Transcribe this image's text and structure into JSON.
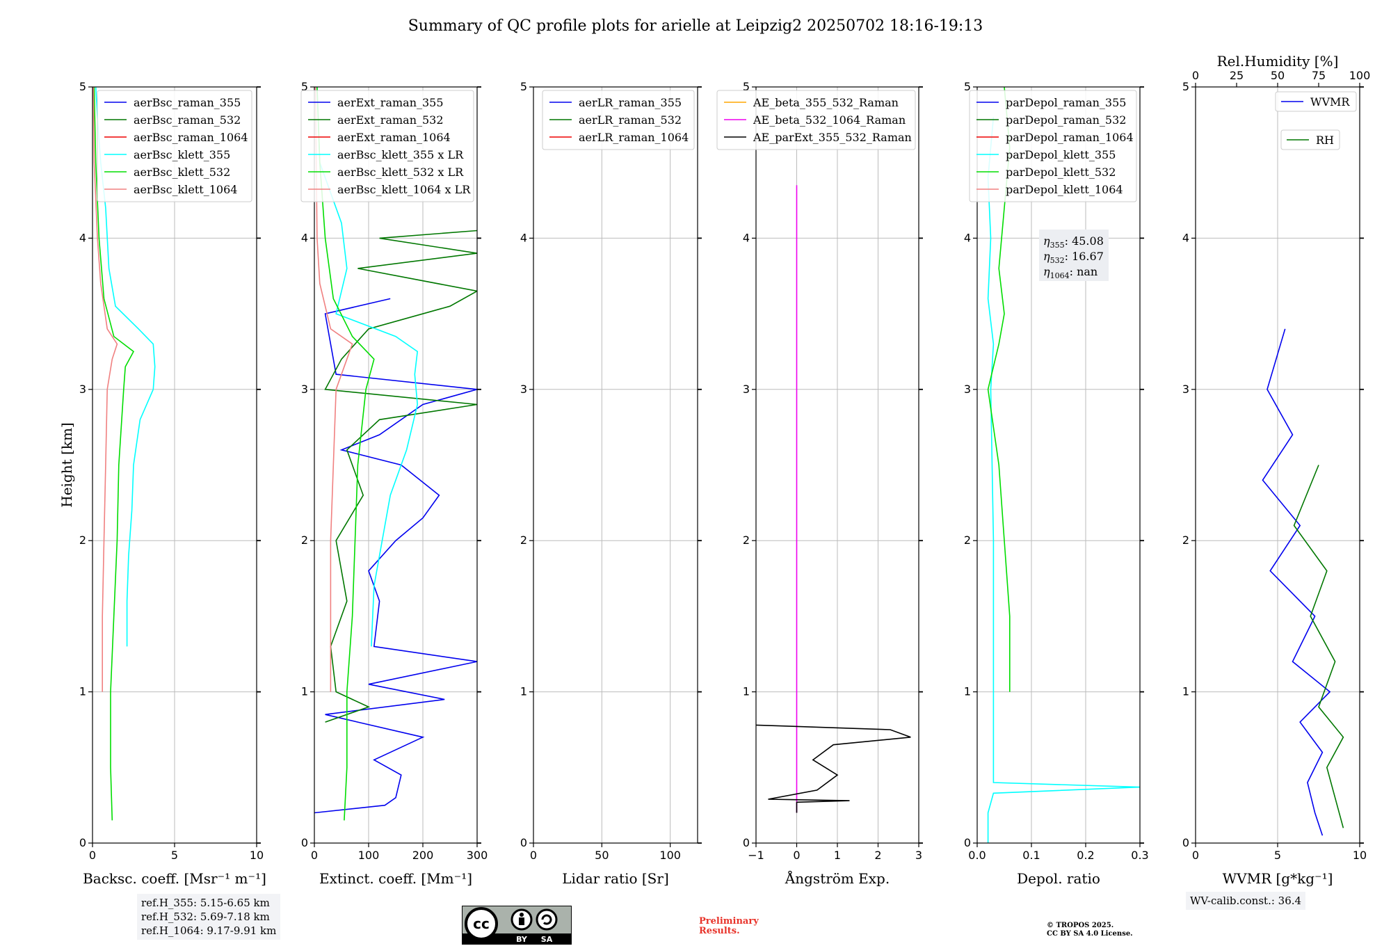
{
  "figure": {
    "title": "Summary of QC profile plots for arielle at Leipzig2 20250702 18:16-19:13"
  },
  "chart_data": [
    {
      "type": "line",
      "panel": "backscatter",
      "xlabel": "Backsc. coeff. [Msr⁻¹ m⁻¹]",
      "ylabel": "Height [km]",
      "xlim": [
        0,
        10
      ],
      "ylim": [
        0,
        5
      ],
      "xticks": [
        "0",
        "5",
        "10"
      ],
      "yticks": [
        "0",
        "1",
        "2",
        "3",
        "4",
        "5"
      ],
      "grid": true,
      "legend": "top-right",
      "series": [
        {
          "name": "aerBsc_raman_355",
          "color": "#0000ee",
          "points": []
        },
        {
          "name": "aerBsc_raman_532",
          "color": "#007700",
          "points": []
        },
        {
          "name": "aerBsc_raman_1064",
          "color": "#ee0000",
          "points": []
        },
        {
          "name": "aerBsc_klett_355",
          "color": "#00ffff",
          "points": [
            [
              2.1,
              1.3
            ],
            [
              2.1,
              1.6
            ],
            [
              2.2,
              1.9
            ],
            [
              2.4,
              2.2
            ],
            [
              2.5,
              2.5
            ],
            [
              2.9,
              2.8
            ],
            [
              3.7,
              3.0
            ],
            [
              3.8,
              3.15
            ],
            [
              3.7,
              3.3
            ],
            [
              2.8,
              3.4
            ],
            [
              1.4,
              3.55
            ],
            [
              1.0,
              3.8
            ],
            [
              0.8,
              4.2
            ],
            [
              0.5,
              4.5
            ],
            [
              0.3,
              4.8
            ],
            [
              0.2,
              5.0
            ]
          ]
        },
        {
          "name": "aerBsc_klett_532",
          "color": "#00dd00",
          "points": [
            [
              1.2,
              0.15
            ],
            [
              1.1,
              0.5
            ],
            [
              1.1,
              1.0
            ],
            [
              1.3,
              1.5
            ],
            [
              1.5,
              2.0
            ],
            [
              1.6,
              2.5
            ],
            [
              1.9,
              3.0
            ],
            [
              2.0,
              3.15
            ],
            [
              2.5,
              3.25
            ],
            [
              1.3,
              3.35
            ],
            [
              0.7,
              3.6
            ],
            [
              0.4,
              4.0
            ],
            [
              0.2,
              4.5
            ],
            [
              0.1,
              5.0
            ]
          ]
        },
        {
          "name": "aerBsc_klett_1064",
          "color": "#f08080",
          "points": [
            [
              0.6,
              1.0
            ],
            [
              0.6,
              1.5
            ],
            [
              0.7,
              2.0
            ],
            [
              0.8,
              2.5
            ],
            [
              0.9,
              3.0
            ],
            [
              1.2,
              3.2
            ],
            [
              1.5,
              3.3
            ],
            [
              0.9,
              3.4
            ],
            [
              0.5,
              3.7
            ],
            [
              0.3,
              4.0
            ],
            [
              0.1,
              4.5
            ],
            [
              0.05,
              5.0
            ]
          ]
        }
      ]
    },
    {
      "type": "line",
      "panel": "extinction",
      "xlabel": "Extinct. coeff. [Mm⁻¹]",
      "xlim": [
        0,
        300
      ],
      "ylim": [
        0,
        5
      ],
      "xticks": [
        "0",
        "100",
        "200",
        "300"
      ],
      "yticks": [
        "0",
        "1",
        "2",
        "3",
        "4",
        "5"
      ],
      "grid": true,
      "legend": "top-right",
      "series": [
        {
          "name": "aerExt_raman_355",
          "color": "#0000ee",
          "points": [
            [
              0,
              0.2
            ],
            [
              130,
              0.25
            ],
            [
              150,
              0.3
            ],
            [
              160,
              0.45
            ],
            [
              110,
              0.55
            ],
            [
              200,
              0.7
            ],
            [
              80,
              0.8
            ],
            [
              20,
              0.85
            ],
            [
              240,
              0.95
            ],
            [
              100,
              1.05
            ],
            [
              300,
              1.2
            ],
            [
              110,
              1.3
            ],
            [
              120,
              1.6
            ],
            [
              100,
              1.8
            ],
            [
              150,
              2.0
            ],
            [
              200,
              2.15
            ],
            [
              230,
              2.3
            ],
            [
              160,
              2.5
            ],
            [
              50,
              2.6
            ],
            [
              120,
              2.7
            ],
            [
              200,
              2.9
            ],
            [
              300,
              3.0
            ],
            [
              40,
              3.1
            ],
            [
              20,
              3.5
            ],
            [
              140,
              3.6
            ]
          ]
        },
        {
          "name": "aerExt_raman_532",
          "color": "#007700",
          "points": [
            [
              20,
              0.8
            ],
            [
              100,
              0.9
            ],
            [
              40,
              1.0
            ],
            [
              30,
              1.3
            ],
            [
              60,
              1.6
            ],
            [
              40,
              2.0
            ],
            [
              90,
              2.3
            ],
            [
              60,
              2.6
            ],
            [
              120,
              2.8
            ],
            [
              300,
              2.9
            ],
            [
              20,
              3.0
            ],
            [
              50,
              3.2
            ],
            [
              100,
              3.4
            ],
            [
              250,
              3.55
            ],
            [
              300,
              3.65
            ],
            [
              80,
              3.8
            ],
            [
              300,
              3.9
            ],
            [
              120,
              4.0
            ],
            [
              300,
              4.05
            ]
          ]
        },
        {
          "name": "aerExt_raman_1064",
          "color": "#ee0000",
          "points": []
        },
        {
          "name": "aerBsc_klett_355 x LR",
          "color": "#00ffff",
          "points": [
            [
              105,
              1.3
            ],
            [
              110,
              1.7
            ],
            [
              125,
              2.0
            ],
            [
              140,
              2.3
            ],
            [
              170,
              2.6
            ],
            [
              190,
              2.9
            ],
            [
              185,
              3.1
            ],
            [
              190,
              3.25
            ],
            [
              150,
              3.35
            ],
            [
              40,
              3.5
            ],
            [
              60,
              3.8
            ],
            [
              50,
              4.1
            ],
            [
              10,
              4.5
            ],
            [
              5,
              5.0
            ]
          ]
        },
        {
          "name": "aerBsc_klett_532 x LR",
          "color": "#00dd00",
          "points": [
            [
              55,
              0.15
            ],
            [
              60,
              0.5
            ],
            [
              60,
              1.0
            ],
            [
              70,
              1.5
            ],
            [
              75,
              2.0
            ],
            [
              80,
              2.5
            ],
            [
              95,
              3.0
            ],
            [
              110,
              3.2
            ],
            [
              70,
              3.35
            ],
            [
              35,
              3.6
            ],
            [
              20,
              4.0
            ],
            [
              10,
              4.5
            ],
            [
              5,
              5.0
            ]
          ]
        },
        {
          "name": "aerBsc_klett_1064 x LR",
          "color": "#f08080",
          "points": [
            [
              30,
              1.0
            ],
            [
              30,
              1.5
            ],
            [
              30,
              2.0
            ],
            [
              35,
              2.5
            ],
            [
              40,
              3.0
            ],
            [
              60,
              3.2
            ],
            [
              70,
              3.3
            ],
            [
              30,
              3.4
            ],
            [
              10,
              3.7
            ],
            [
              5,
              4.0
            ],
            [
              2,
              5.0
            ]
          ]
        }
      ]
    },
    {
      "type": "line",
      "panel": "lidar_ratio",
      "xlabel": "Lidar ratio [Sr]",
      "xlim": [
        0,
        120
      ],
      "ylim": [
        0,
        5
      ],
      "xticks": [
        "0",
        "50",
        "100"
      ],
      "yticks": [
        "0",
        "1",
        "2",
        "3",
        "4",
        "5"
      ],
      "grid": true,
      "legend": "top-right",
      "series": [
        {
          "name": "aerLR_raman_355",
          "color": "#0000ee",
          "points": []
        },
        {
          "name": "aerLR_raman_532",
          "color": "#007700",
          "points": []
        },
        {
          "name": "aerLR_raman_1064",
          "color": "#ee0000",
          "points": []
        }
      ]
    },
    {
      "type": "line",
      "panel": "angstrom",
      "xlabel": "Ångström Exp.",
      "xlim": [
        -1,
        3
      ],
      "ylim": [
        0,
        5
      ],
      "xticks": [
        "−1",
        "0",
        "1",
        "2",
        "3"
      ],
      "yticks": [
        "0",
        "1",
        "2",
        "3",
        "4",
        "5"
      ],
      "grid": true,
      "legend": "top-right",
      "series": [
        {
          "name": "AE_beta_355_532_Raman",
          "color": "#ffa500",
          "points": []
        },
        {
          "name": "AE_beta_532_1064_Raman",
          "color": "#ee00ee",
          "points": [
            [
              0,
              0.2
            ],
            [
              0,
              4.35
            ]
          ]
        },
        {
          "name": "AE_parExt_355_532_Raman",
          "color": "#000000",
          "points": [
            [
              0,
              0.2
            ],
            [
              0,
              0.27
            ],
            [
              1.3,
              0.28
            ],
            [
              -0.7,
              0.29
            ],
            [
              0.5,
              0.35
            ],
            [
              1.0,
              0.45
            ],
            [
              0.4,
              0.55
            ],
            [
              0.9,
              0.65
            ],
            [
              2.8,
              0.7
            ],
            [
              2.3,
              0.75
            ],
            [
              -1,
              0.78
            ]
          ]
        }
      ]
    },
    {
      "type": "line",
      "panel": "depol",
      "xlabel": "Depol. ratio",
      "xlim": [
        0,
        0.3
      ],
      "ylim": [
        0,
        5
      ],
      "xticks": [
        "0.0",
        "0.1",
        "0.2",
        "0.3"
      ],
      "yticks": [
        "0",
        "1",
        "2",
        "3",
        "4",
        "5"
      ],
      "grid": true,
      "legend": "top-right",
      "series": [
        {
          "name": "parDepol_raman_355",
          "color": "#0000ee",
          "points": []
        },
        {
          "name": "parDepol_raman_532",
          "color": "#007700",
          "points": []
        },
        {
          "name": "parDepol_raman_1064",
          "color": "#ee0000",
          "points": []
        },
        {
          "name": "parDepol_klett_355",
          "color": "#00ffff",
          "points": [
            [
              0.02,
              0.0
            ],
            [
              0.02,
              0.2
            ],
            [
              0.03,
              0.33
            ],
            [
              0.3,
              0.37
            ],
            [
              0.03,
              0.4
            ],
            [
              0.03,
              1.0
            ],
            [
              0.03,
              2.0
            ],
            [
              0.025,
              3.0
            ],
            [
              0.03,
              3.3
            ],
            [
              0.02,
              3.6
            ],
            [
              0.025,
              4.0
            ],
            [
              0.02,
              4.4
            ],
            [
              0.03,
              4.8
            ]
          ]
        },
        {
          "name": "parDepol_klett_532",
          "color": "#00dd00",
          "points": [
            [
              0.06,
              1.0
            ],
            [
              0.06,
              1.5
            ],
            [
              0.05,
              2.0
            ],
            [
              0.04,
              2.5
            ],
            [
              0.02,
              3.0
            ],
            [
              0.04,
              3.3
            ],
            [
              0.05,
              3.5
            ],
            [
              0.04,
              3.8
            ],
            [
              0.05,
              4.2
            ],
            [
              0.06,
              4.6
            ],
            [
              0.05,
              5.0
            ]
          ]
        },
        {
          "name": "parDepol_klett_1064",
          "color": "#f08080",
          "points": []
        }
      ]
    },
    {
      "type": "line",
      "panel": "wvmr",
      "xlabel": "WVMR [g*kg⁻¹]",
      "x2label": "Rel.Humidity [%]",
      "xlim": [
        0,
        11
      ],
      "x2lim": [
        0,
        100
      ],
      "ylim": [
        0,
        5
      ],
      "xticks": [
        "0",
        "5",
        "10"
      ],
      "x2ticks": [
        "0",
        "25",
        "50",
        "75",
        "100"
      ],
      "yticks": [
        "0",
        "1",
        "2",
        "3",
        "4",
        "5"
      ],
      "grid": true,
      "legend": "top-right",
      "series": [
        {
          "name": "WVMR",
          "color": "#0000ee",
          "points": [
            [
              8.5,
              0.05
            ],
            [
              8.0,
              0.2
            ],
            [
              7.5,
              0.4
            ],
            [
              8.5,
              0.6
            ],
            [
              7.0,
              0.8
            ],
            [
              9.0,
              1.0
            ],
            [
              6.5,
              1.2
            ],
            [
              8.0,
              1.5
            ],
            [
              5.0,
              1.8
            ],
            [
              7.0,
              2.1
            ],
            [
              4.5,
              2.4
            ],
            [
              6.5,
              2.7
            ],
            [
              4.8,
              3.0
            ],
            [
              6.0,
              3.4
            ]
          ]
        },
        {
          "name": "RH",
          "color": "#007700",
          "points": [
            [
              90,
              0.1
            ],
            [
              85,
              0.3
            ],
            [
              80,
              0.5
            ],
            [
              90,
              0.7
            ],
            [
              75,
              0.9
            ],
            [
              85,
              1.2
            ],
            [
              70,
              1.5
            ],
            [
              80,
              1.8
            ],
            [
              60,
              2.1
            ],
            [
              75,
              2.5
            ]
          ]
        }
      ]
    }
  ],
  "eta": {
    "eta_355": "45.08",
    "eta_532": "16.67",
    "eta_1064": "nan"
  },
  "refheights": {
    "line1": "ref.H_355: 5.15-6.65 km",
    "line2": "ref.H_532: 5.69-7.18 km",
    "line3": "ref.H_1064: 9.17-9.91 km"
  },
  "wvcalib": "WV-calib.const.: 36.4",
  "license": {
    "cc_by": "BY",
    "cc_sa": "SA",
    "preliminary_line1": "Preliminary",
    "preliminary_line2": "Results.",
    "copyright_line1": "© TROPOS 2025.",
    "copyright_line2": "CC BY SA 4.0 License."
  }
}
